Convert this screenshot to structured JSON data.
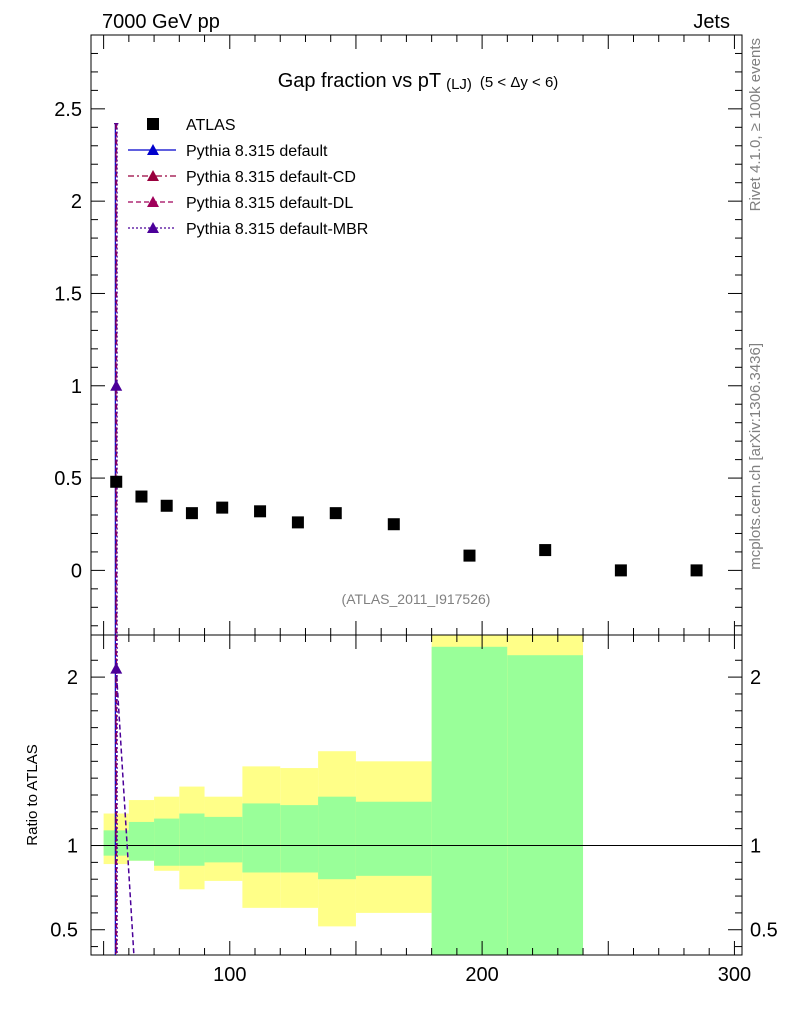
{
  "header": {
    "left": "7000 GeV pp",
    "right": "Jets"
  },
  "side_text": {
    "rivet": "Rivet 4.1.0, ≥ 100k events",
    "source": "mcplots.cern.ch [arXiv:1306.3436]"
  },
  "chart_data": {
    "type": "scatter",
    "title": "Gap fraction vs pT",
    "title_sub": "(LJ)",
    "title_range": "(5 < Δy < 6)",
    "analysis_tag": "(ATLAS_2011_I917526)",
    "x_range": [
      45,
      303
    ],
    "x_ticks": [
      "100",
      "200",
      "300"
    ],
    "main": {
      "ylim": [
        -0.35,
        2.9
      ],
      "y_ticks": [
        "0",
        "0.5",
        "1",
        "1.5",
        "2",
        "2.5"
      ],
      "y_tick_values": [
        0,
        0.5,
        1,
        1.5,
        2,
        2.5
      ]
    },
    "ratio": {
      "ylabel": "Ratio to ATLAS",
      "ylim": [
        0.35,
        2.25
      ],
      "y_ticks": [
        "0.5",
        "1",
        "2"
      ],
      "y_tick_values": [
        0.5,
        1,
        2
      ]
    },
    "legend": [
      {
        "name": "ATLAS",
        "color": "#000000",
        "line": "none",
        "marker": "square"
      },
      {
        "name": "Pythia 8.315 default",
        "color": "#0000cc",
        "line": "solid",
        "marker": "triangle"
      },
      {
        "name": "Pythia 8.315 default-CD",
        "color": "#99003d",
        "line": "dashdot",
        "marker": "triangle"
      },
      {
        "name": "Pythia 8.315 default-DL",
        "color": "#a0005a",
        "line": "dashed",
        "marker": "triangle"
      },
      {
        "name": "Pythia 8.315 default-MBR",
        "color": "#4b0099",
        "line": "dotted",
        "marker": "triangle"
      }
    ],
    "atlas_points": [
      {
        "x": 55,
        "y": 0.48
      },
      {
        "x": 65,
        "y": 0.4
      },
      {
        "x": 75,
        "y": 0.35
      },
      {
        "x": 85,
        "y": 0.31
      },
      {
        "x": 97,
        "y": 0.34
      },
      {
        "x": 112,
        "y": 0.32
      },
      {
        "x": 127,
        "y": 0.26
      },
      {
        "x": 142,
        "y": 0.31
      },
      {
        "x": 165,
        "y": 0.25
      },
      {
        "x": 195,
        "y": 0.08
      },
      {
        "x": 225,
        "y": 0.11
      },
      {
        "x": 255,
        "y": 0.0
      },
      {
        "x": 285,
        "y": 0.0
      }
    ],
    "mc_main": {
      "x": 55,
      "y": 1.0,
      "err_high": 2.42,
      "err_low": -0.35
    },
    "mc_ratio": {
      "x": 55,
      "y": 2.05,
      "line_end_x": 62,
      "line_end_y": 0.35
    },
    "ratio_bands": [
      {
        "x0": 50,
        "x1": 60,
        "y_lo": 0.89,
        "y_hi": 1.19,
        "s_lo": 0.94,
        "s_hi": 1.09
      },
      {
        "x0": 60,
        "x1": 70,
        "y_lo": 0.91,
        "y_hi": 1.27,
        "s_lo": 0.91,
        "s_hi": 1.14
      },
      {
        "x0": 70,
        "x1": 80,
        "y_lo": 0.85,
        "y_hi": 1.29,
        "s_lo": 0.88,
        "s_hi": 1.16
      },
      {
        "x0": 80,
        "x1": 90,
        "y_lo": 0.74,
        "y_hi": 1.35,
        "s_lo": 0.88,
        "s_hi": 1.19
      },
      {
        "x0": 90,
        "x1": 105,
        "y_lo": 0.79,
        "y_hi": 1.29,
        "s_lo": 0.9,
        "s_hi": 1.17
      },
      {
        "x0": 105,
        "x1": 120,
        "y_lo": 0.63,
        "y_hi": 1.47,
        "s_lo": 0.84,
        "s_hi": 1.25
      },
      {
        "x0": 120,
        "x1": 135,
        "y_lo": 0.63,
        "y_hi": 1.46,
        "s_lo": 0.84,
        "s_hi": 1.24
      },
      {
        "x0": 135,
        "x1": 150,
        "y_lo": 0.52,
        "y_hi": 1.56,
        "s_lo": 0.8,
        "s_hi": 1.29
      },
      {
        "x0": 150,
        "x1": 180,
        "y_lo": 0.6,
        "y_hi": 1.5,
        "s_lo": 0.82,
        "s_hi": 1.26
      },
      {
        "x0": 180,
        "x1": 210,
        "y_lo": 0.35,
        "y_hi": 2.25,
        "s_lo": 0.35,
        "s_hi": 2.18
      },
      {
        "x0": 210,
        "x1": 240,
        "y_lo": 0.35,
        "y_hi": 2.25,
        "s_lo": 0.35,
        "s_hi": 2.13
      }
    ]
  }
}
